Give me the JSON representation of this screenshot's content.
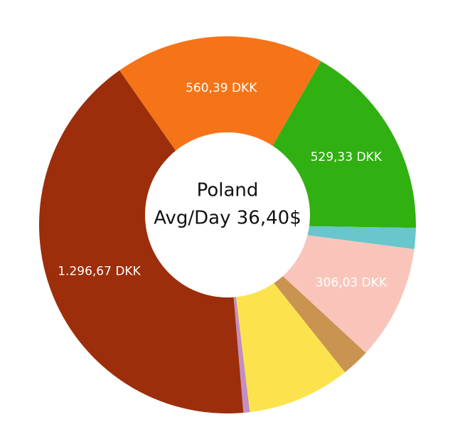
{
  "chart_data": {
    "type": "pie",
    "variant": "donut",
    "center_title": "Poland",
    "center_subtitle": "Avg/Day 36,40$",
    "start_angle_deg": -35,
    "slices": [
      {
        "value": 560.39,
        "label": "560,39 DKK",
        "color": "#F67418"
      },
      {
        "value": 529.33,
        "label": "529,33 DKK",
        "color": "#31B011"
      },
      {
        "value": 56.0,
        "label": "",
        "color": "#68C6CC"
      },
      {
        "value": 306.03,
        "label": "306,03 DKK",
        "color": "#F9C5BB"
      },
      {
        "value": 75.0,
        "label": "",
        "color": "#C99350"
      },
      {
        "value": 275.0,
        "label": "",
        "color": "#FCE34D"
      },
      {
        "value": 17.0,
        "label": "",
        "color": "#C38FC0"
      },
      {
        "value": 1296.67,
        "label": "1.296,67 DKK",
        "color": "#9C2E0B"
      }
    ]
  }
}
